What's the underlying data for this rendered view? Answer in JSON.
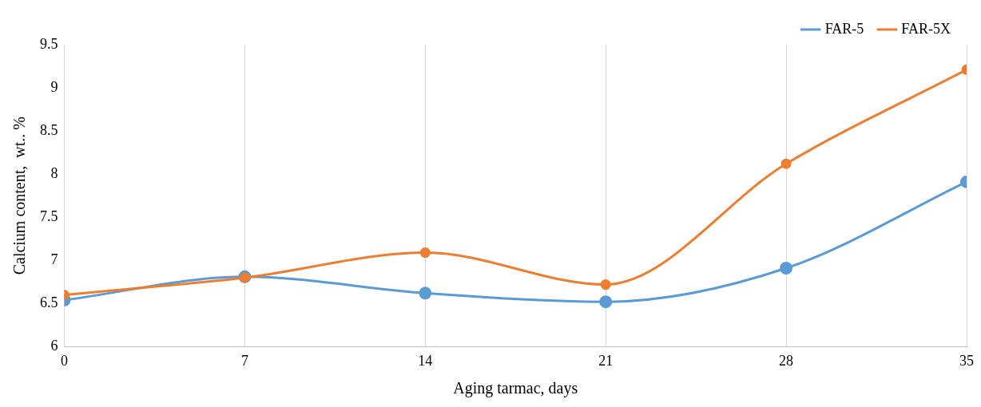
{
  "chart_data": {
    "type": "line",
    "xlabel": "Aging tarmac, days",
    "ylabel": "Calcium content,  wt.. %",
    "x": [
      0,
      7,
      14,
      21,
      28,
      35
    ],
    "series": [
      {
        "name": "FAR-5",
        "color": "#5b9bd5",
        "values": [
          6.54,
          6.81,
          6.62,
          6.52,
          6.91,
          7.91
        ]
      },
      {
        "name": "FAR-5X",
        "color": "#ed7d31",
        "values": [
          6.6,
          6.8,
          7.09,
          6.72,
          8.12,
          9.21
        ]
      }
    ],
    "xlim": [
      0,
      35
    ],
    "xticks": [
      0,
      7,
      14,
      21,
      28,
      35
    ],
    "ylim": [
      6,
      9.5
    ],
    "yticks": [
      6,
      6.5,
      7,
      7.5,
      8,
      8.5,
      9,
      9.5
    ],
    "grid": "x",
    "legend": "top right",
    "marker": "circle",
    "line_style": "solid"
  }
}
